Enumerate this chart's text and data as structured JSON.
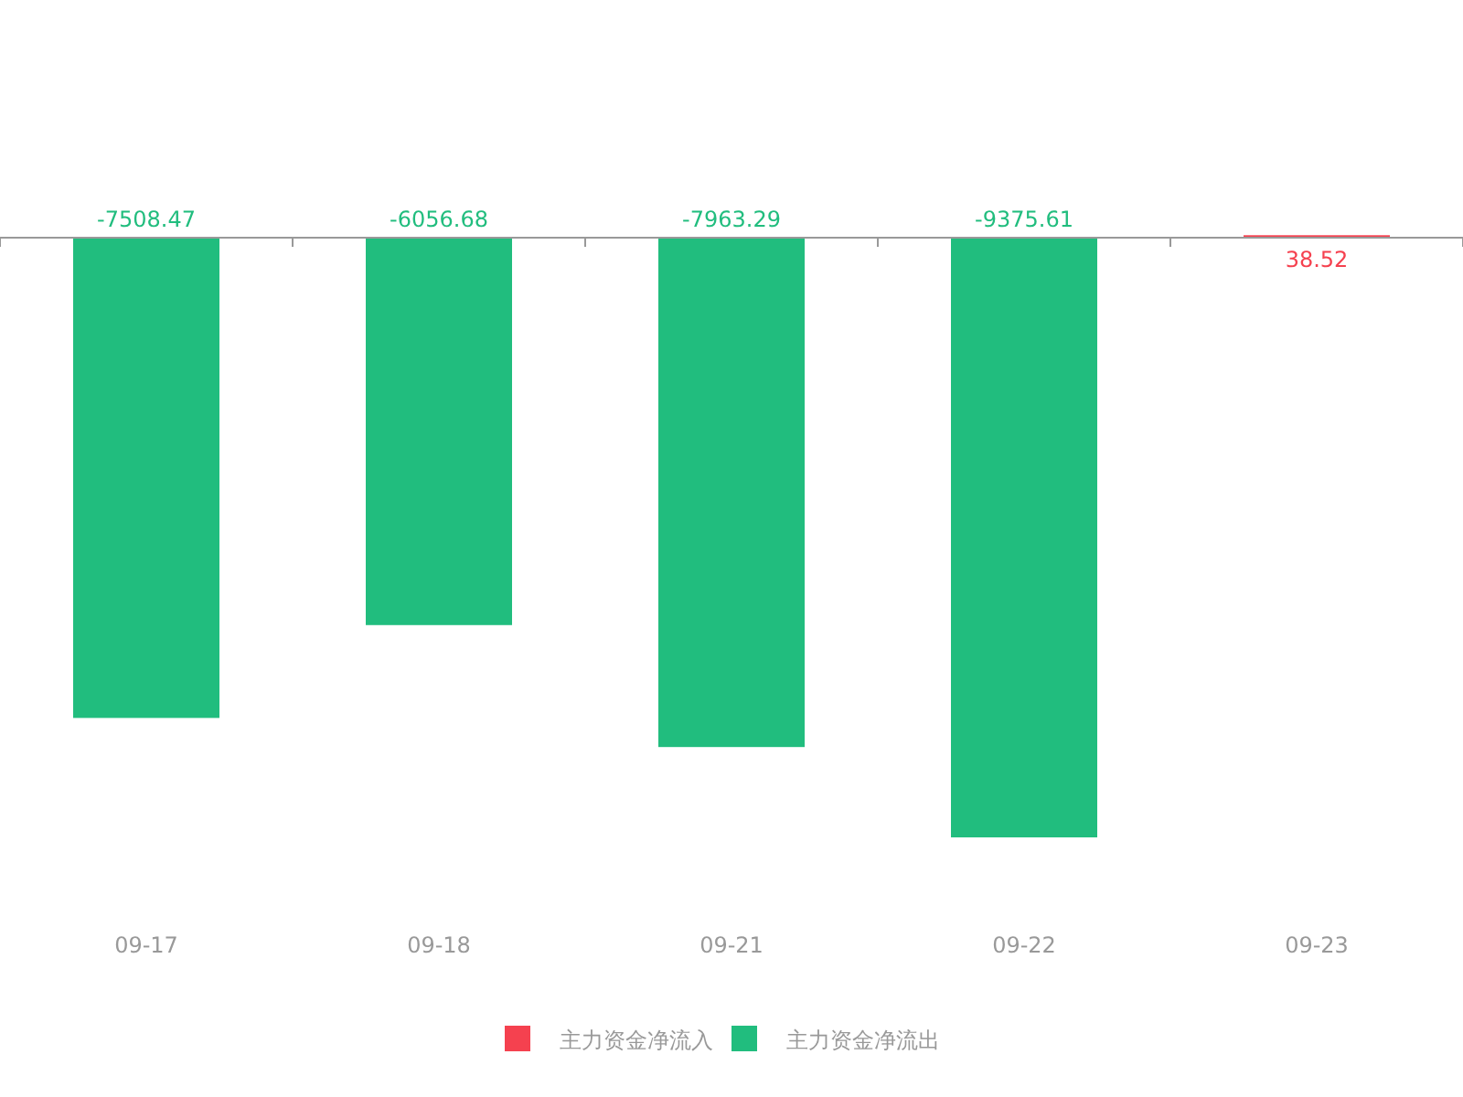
{
  "chart_data": {
    "type": "bar",
    "categories": [
      "09-17",
      "09-18",
      "09-21",
      "09-22",
      "09-23"
    ],
    "series": [
      {
        "name": "主力资金净流入",
        "color": "#f5414f",
        "values": [
          null,
          null,
          null,
          null,
          38.52
        ]
      },
      {
        "name": "主力资金净流出",
        "color": "#21bd7e",
        "values": [
          -7508.47,
          -6056.68,
          -7963.29,
          -9375.61,
          null
        ]
      }
    ],
    "data_labels": true,
    "legend": "bottom",
    "grid": false,
    "tick_labels": "x"
  }
}
